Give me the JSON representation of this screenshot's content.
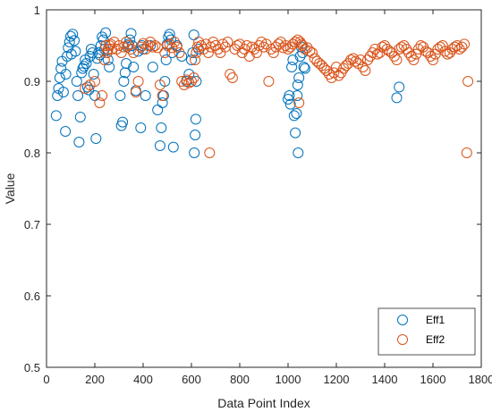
{
  "chart_data": {
    "type": "scatter",
    "xlabel": "Data Point Index",
    "ylabel": "Value",
    "xlim": [
      0,
      1800
    ],
    "ylim": [
      0.5,
      1.0
    ],
    "xticks": [
      "0",
      "200",
      "400",
      "600",
      "800",
      "1000",
      "1200",
      "1400",
      "1600",
      "1800"
    ],
    "yticks": [
      "0.5",
      "0.6",
      "0.7",
      "0.8",
      "0.9",
      "1"
    ],
    "grid": false,
    "legend_position": "bottom-right",
    "series": [
      {
        "name": "Eff1",
        "color": "#0072BD",
        "marker": "circle-open",
        "points": [
          [
            40,
            0.852
          ],
          [
            45,
            0.88
          ],
          [
            50,
            0.89
          ],
          [
            55,
            0.905
          ],
          [
            60,
            0.918
          ],
          [
            65,
            0.928
          ],
          [
            70,
            0.885
          ],
          [
            78,
            0.83
          ],
          [
            80,
            0.91
          ],
          [
            85,
            0.935
          ],
          [
            90,
            0.947
          ],
          [
            95,
            0.955
          ],
          [
            100,
            0.963
          ],
          [
            103,
            0.938
          ],
          [
            108,
            0.966
          ],
          [
            115,
            0.957
          ],
          [
            120,
            0.942
          ],
          [
            125,
            0.9
          ],
          [
            130,
            0.88
          ],
          [
            135,
            0.815
          ],
          [
            140,
            0.85
          ],
          [
            145,
            0.912
          ],
          [
            150,
            0.918
          ],
          [
            155,
            0.921
          ],
          [
            160,
            0.93
          ],
          [
            165,
            0.925
          ],
          [
            170,
            0.892
          ],
          [
            175,
            0.888
          ],
          [
            180,
            0.935
          ],
          [
            185,
            0.945
          ],
          [
            190,
            0.94
          ],
          [
            195,
            0.91
          ],
          [
            200,
            0.88
          ],
          [
            205,
            0.82
          ],
          [
            210,
            0.932
          ],
          [
            215,
            0.94
          ],
          [
            220,
            0.937
          ],
          [
            225,
            0.95
          ],
          [
            230,
            0.962
          ],
          [
            235,
            0.958
          ],
          [
            240,
            0.945
          ],
          [
            245,
            0.968
          ],
          [
            250,
            0.94
          ],
          [
            255,
            0.93
          ],
          [
            260,
            0.92
          ],
          [
            305,
            0.88
          ],
          [
            310,
            0.838
          ],
          [
            315,
            0.843
          ],
          [
            320,
            0.9
          ],
          [
            325,
            0.912
          ],
          [
            330,
            0.925
          ],
          [
            335,
            0.948
          ],
          [
            340,
            0.952
          ],
          [
            345,
            0.958
          ],
          [
            350,
            0.967
          ],
          [
            355,
            0.95
          ],
          [
            360,
            0.92
          ],
          [
            370,
            0.887
          ],
          [
            380,
            0.942
          ],
          [
            390,
            0.835
          ],
          [
            395,
            0.95
          ],
          [
            400,
            0.945
          ],
          [
            410,
            0.88
          ],
          [
            430,
            0.95
          ],
          [
            440,
            0.92
          ],
          [
            460,
            0.86
          ],
          [
            470,
            0.81
          ],
          [
            475,
            0.835
          ],
          [
            480,
            0.87
          ],
          [
            485,
            0.88
          ],
          [
            490,
            0.9
          ],
          [
            495,
            0.93
          ],
          [
            500,
            0.952
          ],
          [
            505,
            0.962
          ],
          [
            510,
            0.966
          ],
          [
            515,
            0.958
          ],
          [
            520,
            0.94
          ],
          [
            525,
            0.808
          ],
          [
            540,
            0.95
          ],
          [
            560,
            0.935
          ],
          [
            580,
            0.9
          ],
          [
            590,
            0.91
          ],
          [
            600,
            0.93
          ],
          [
            605,
            0.94
          ],
          [
            610,
            0.965
          ],
          [
            612,
            0.8
          ],
          [
            615,
            0.825
          ],
          [
            618,
            0.847
          ],
          [
            620,
            0.9
          ],
          [
            630,
            0.945
          ],
          [
            1000,
            0.875
          ],
          [
            1005,
            0.88
          ],
          [
            1010,
            0.868
          ],
          [
            1015,
            0.92
          ],
          [
            1020,
            0.93
          ],
          [
            1025,
            0.852
          ],
          [
            1030,
            0.828
          ],
          [
            1035,
            0.855
          ],
          [
            1038,
            0.88
          ],
          [
            1040,
            0.895
          ],
          [
            1042,
            0.8
          ],
          [
            1045,
            0.905
          ],
          [
            1050,
            0.935
          ],
          [
            1055,
            0.948
          ],
          [
            1060,
            0.94
          ],
          [
            1065,
            0.92
          ],
          [
            1070,
            0.918
          ],
          [
            1450,
            0.877
          ],
          [
            1460,
            0.892
          ]
        ]
      },
      {
        "name": "Eff2",
        "color": "#D95319",
        "marker": "circle-open",
        "points": [
          [
            160,
            0.89
          ],
          [
            180,
            0.895
          ],
          [
            200,
            0.9
          ],
          [
            220,
            0.87
          ],
          [
            230,
            0.88
          ],
          [
            240,
            0.93
          ],
          [
            245,
            0.95
          ],
          [
            250,
            0.94
          ],
          [
            255,
            0.945
          ],
          [
            260,
            0.95
          ],
          [
            265,
            0.952
          ],
          [
            270,
            0.945
          ],
          [
            280,
            0.955
          ],
          [
            290,
            0.945
          ],
          [
            300,
            0.95
          ],
          [
            310,
            0.94
          ],
          [
            320,
            0.948
          ],
          [
            330,
            0.955
          ],
          [
            340,
            0.95
          ],
          [
            350,
            0.945
          ],
          [
            360,
            0.94
          ],
          [
            370,
            0.885
          ],
          [
            380,
            0.9
          ],
          [
            390,
            0.948
          ],
          [
            400,
            0.953
          ],
          [
            410,
            0.945
          ],
          [
            420,
            0.95
          ],
          [
            430,
            0.955
          ],
          [
            440,
            0.948
          ],
          [
            450,
            0.95
          ],
          [
            460,
            0.947
          ],
          [
            470,
            0.895
          ],
          [
            480,
            0.88
          ],
          [
            490,
            0.94
          ],
          [
            500,
            0.95
          ],
          [
            510,
            0.952
          ],
          [
            520,
            0.947
          ],
          [
            530,
            0.955
          ],
          [
            540,
            0.948
          ],
          [
            550,
            0.94
          ],
          [
            560,
            0.9
          ],
          [
            570,
            0.895
          ],
          [
            580,
            0.902
          ],
          [
            590,
            0.898
          ],
          [
            600,
            0.9
          ],
          [
            610,
            0.905
          ],
          [
            615,
            0.93
          ],
          [
            620,
            0.94
          ],
          [
            625,
            0.948
          ],
          [
            630,
            0.955
          ],
          [
            640,
            0.95
          ],
          [
            650,
            0.945
          ],
          [
            660,
            0.952
          ],
          [
            670,
            0.94
          ],
          [
            675,
            0.8
          ],
          [
            680,
            0.948
          ],
          [
            690,
            0.955
          ],
          [
            700,
            0.95
          ],
          [
            710,
            0.945
          ],
          [
            720,
            0.94
          ],
          [
            730,
            0.952
          ],
          [
            740,
            0.948
          ],
          [
            750,
            0.955
          ],
          [
            760,
            0.91
          ],
          [
            770,
            0.905
          ],
          [
            780,
            0.945
          ],
          [
            790,
            0.95
          ],
          [
            800,
            0.952
          ],
          [
            810,
            0.94
          ],
          [
            820,
            0.945
          ],
          [
            830,
            0.95
          ],
          [
            840,
            0.935
          ],
          [
            850,
            0.948
          ],
          [
            860,
            0.945
          ],
          [
            870,
            0.94
          ],
          [
            880,
            0.95
          ],
          [
            890,
            0.955
          ],
          [
            900,
            0.948
          ],
          [
            910,
            0.952
          ],
          [
            920,
            0.9
          ],
          [
            930,
            0.945
          ],
          [
            940,
            0.94
          ],
          [
            950,
            0.948
          ],
          [
            960,
            0.952
          ],
          [
            970,
            0.955
          ],
          [
            980,
            0.947
          ],
          [
            990,
            0.95
          ],
          [
            1000,
            0.945
          ],
          [
            1010,
            0.948
          ],
          [
            1020,
            0.952
          ],
          [
            1030,
            0.955
          ],
          [
            1040,
            0.958
          ],
          [
            1045,
            0.87
          ],
          [
            1050,
            0.955
          ],
          [
            1055,
            0.952
          ],
          [
            1060,
            0.95
          ],
          [
            1070,
            0.945
          ],
          [
            1080,
            0.947
          ],
          [
            1090,
            0.942
          ],
          [
            1100,
            0.94
          ],
          [
            1110,
            0.932
          ],
          [
            1120,
            0.928
          ],
          [
            1130,
            0.925
          ],
          [
            1140,
            0.922
          ],
          [
            1150,
            0.918
          ],
          [
            1160,
            0.915
          ],
          [
            1170,
            0.91
          ],
          [
            1180,
            0.905
          ],
          [
            1190,
            0.912
          ],
          [
            1200,
            0.92
          ],
          [
            1210,
            0.908
          ],
          [
            1220,
            0.912
          ],
          [
            1230,
            0.918
          ],
          [
            1240,
            0.922
          ],
          [
            1250,
            0.925
          ],
          [
            1260,
            0.93
          ],
          [
            1270,
            0.932
          ],
          [
            1280,
            0.928
          ],
          [
            1290,
            0.925
          ],
          [
            1300,
            0.93
          ],
          [
            1310,
            0.92
          ],
          [
            1320,
            0.915
          ],
          [
            1330,
            0.93
          ],
          [
            1340,
            0.935
          ],
          [
            1350,
            0.94
          ],
          [
            1360,
            0.945
          ],
          [
            1370,
            0.938
          ],
          [
            1380,
            0.94
          ],
          [
            1390,
            0.948
          ],
          [
            1400,
            0.95
          ],
          [
            1410,
            0.945
          ],
          [
            1420,
            0.942
          ],
          [
            1430,
            0.94
          ],
          [
            1440,
            0.935
          ],
          [
            1450,
            0.93
          ],
          [
            1460,
            0.945
          ],
          [
            1470,
            0.948
          ],
          [
            1480,
            0.95
          ],
          [
            1490,
            0.945
          ],
          [
            1500,
            0.94
          ],
          [
            1510,
            0.935
          ],
          [
            1520,
            0.93
          ],
          [
            1530,
            0.938
          ],
          [
            1540,
            0.945
          ],
          [
            1550,
            0.95
          ],
          [
            1560,
            0.948
          ],
          [
            1570,
            0.942
          ],
          [
            1580,
            0.94
          ],
          [
            1590,
            0.935
          ],
          [
            1600,
            0.93
          ],
          [
            1610,
            0.938
          ],
          [
            1620,
            0.945
          ],
          [
            1630,
            0.948
          ],
          [
            1640,
            0.95
          ],
          [
            1650,
            0.942
          ],
          [
            1660,
            0.938
          ],
          [
            1670,
            0.94
          ],
          [
            1680,
            0.945
          ],
          [
            1690,
            0.948
          ],
          [
            1700,
            0.95
          ],
          [
            1710,
            0.945
          ],
          [
            1720,
            0.948
          ],
          [
            1730,
            0.952
          ],
          [
            1740,
            0.8
          ],
          [
            1745,
            0.9
          ]
        ]
      }
    ]
  }
}
